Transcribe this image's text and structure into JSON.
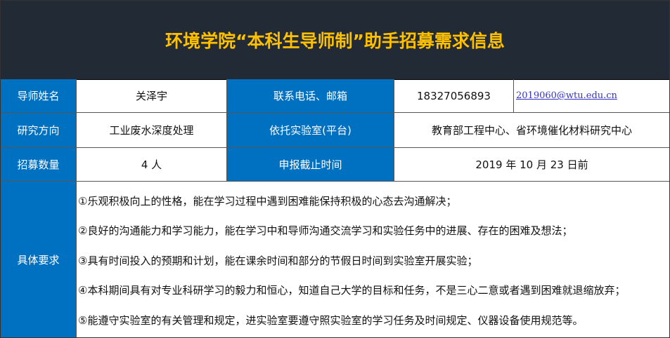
{
  "title": "环境学院“本科生导师制”助手招募需求信息",
  "rows": {
    "name_label": "导师姓名",
    "name": "关泽宇",
    "contact_label": "联系电话、邮箱",
    "phone": "18327056893",
    "email": "2019060@wtu.edu.cn",
    "direction_label": "研究方向",
    "direction": "工业废水深度处理",
    "lab_label": "依托实验室(平台)",
    "lab": "教育部工程中心、省环境催化材料研究中心",
    "count_label": "招募数量",
    "count": "4 人",
    "deadline_label": "申报截止时间",
    "deadline": "2019 年 10 月 23 日前",
    "req_label": "具体要求"
  },
  "requirements": [
    "①乐观积极向上的性格，能在学习过程中遇到困难能保持积极的心态去沟通解决；",
    "②良好的沟通能力和学习能力，能在学习中和导师沟通交流学习和实验任务中的进展、存在的困难及想法；",
    "③具有时间投入的预期和计划，能在课余时间和部分的节假日时间到实验室开展实验；",
    "④本科期间具有对专业科研学习的毅力和恒心，知道自己大学的目标和任务，不是三心二意或者遇到困难就退缩放弃；",
    "⑤能遵守实验室的有关管理和规定，进实验室要遵守照实验室的学习任务及时间规定、仪器设备使用规范等。"
  ]
}
